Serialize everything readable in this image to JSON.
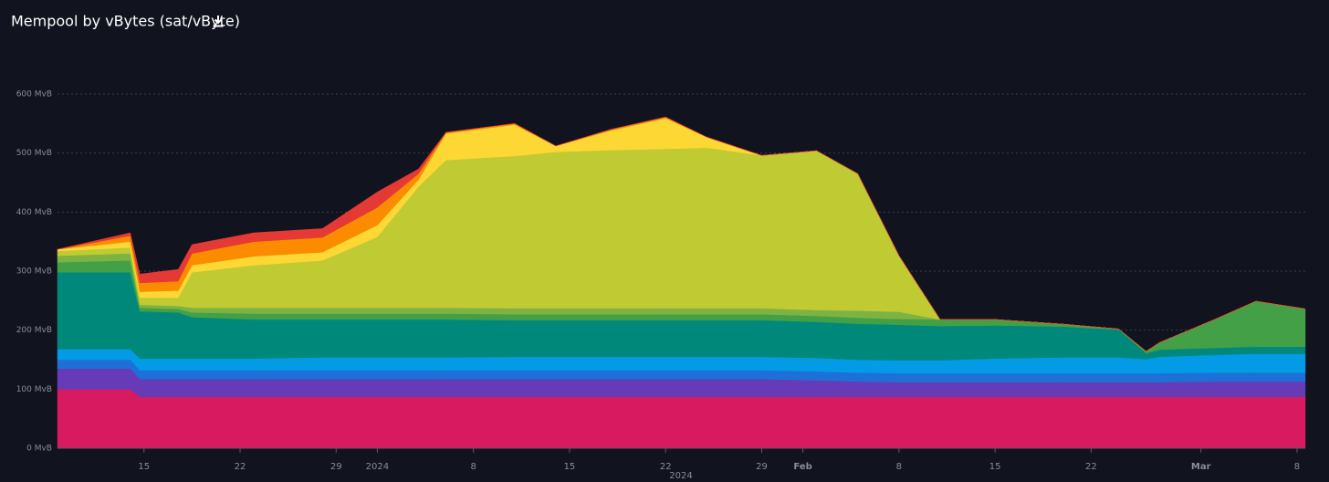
{
  "chart_data": {
    "type": "stacked-area",
    "title": "Mempool by vBytes (sat/vByte)",
    "x_label": "2024",
    "x": [
      -23.3,
      -18,
      -17.3,
      -14.5,
      -13.5,
      -9,
      -4,
      0,
      3,
      5,
      10,
      13,
      17,
      21,
      24,
      28,
      32,
      35,
      38,
      41,
      45,
      50,
      54,
      56,
      57,
      61,
      64,
      67.6
    ],
    "xlim": [
      -23.3,
      67.6
    ],
    "xticks": [
      {
        "value": -17,
        "label": "15"
      },
      {
        "value": -10,
        "label": "22"
      },
      {
        "value": -3,
        "label": "29"
      },
      {
        "value": 0,
        "label": "2024"
      },
      {
        "value": 7,
        "label": "8"
      },
      {
        "value": 14,
        "label": "15"
      },
      {
        "value": 21,
        "label": "22"
      },
      {
        "value": 28,
        "label": "29"
      },
      {
        "value": 31,
        "label": "Feb"
      },
      {
        "value": 38,
        "label": "8"
      },
      {
        "value": 45,
        "label": "15"
      },
      {
        "value": 52,
        "label": "22"
      },
      {
        "value": 60,
        "label": "Mar"
      },
      {
        "value": 67,
        "label": "8"
      }
    ],
    "ylim": [
      0,
      600
    ],
    "yticks": [
      {
        "value": 0,
        "label": "0 MvB"
      },
      {
        "value": 100,
        "label": "100 MvB"
      },
      {
        "value": 200,
        "label": "200 MvB"
      },
      {
        "value": 300,
        "label": "300 MvB"
      },
      {
        "value": 400,
        "label": "400 MvB"
      },
      {
        "value": 500,
        "label": "500 MvB"
      },
      {
        "value": 600,
        "label": "600 MvB"
      }
    ],
    "grid": true,
    "series": [
      {
        "color": "#d81b60",
        "values": [
          100,
          100,
          87,
          87,
          87,
          87,
          87,
          87,
          87,
          87,
          87,
          87,
          87,
          87,
          87,
          87,
          87,
          87,
          87,
          87,
          87,
          87,
          87,
          87,
          87,
          87,
          87,
          87
        ]
      },
      {
        "color": "#673ab7",
        "values": [
          35,
          35,
          30,
          30,
          30,
          30,
          30,
          30,
          30,
          30,
          30,
          30,
          30,
          30,
          30,
          30,
          28,
          26,
          25,
          25,
          25,
          25,
          25,
          25,
          25,
          26,
          26,
          26
        ]
      },
      {
        "color": "#1e70d6",
        "values": [
          15,
          15,
          15,
          15,
          15,
          15,
          15,
          15,
          15,
          15,
          15,
          15,
          15,
          15,
          15,
          15,
          15,
          15,
          15,
          15,
          15,
          15,
          15,
          15,
          15,
          15,
          15,
          15
        ]
      },
      {
        "color": "#039be5",
        "values": [
          18,
          18,
          20,
          20,
          20,
          20,
          22,
          22,
          22,
          22,
          23,
          23,
          23,
          23,
          23,
          23,
          23,
          22,
          22,
          22,
          25,
          27,
          27,
          24,
          28,
          30,
          32,
          32
        ]
      },
      {
        "color": "#00897b",
        "values": [
          130,
          130,
          80,
          78,
          70,
          66,
          64,
          64,
          64,
          64,
          62,
          62,
          62,
          62,
          62,
          62,
          61,
          61,
          60,
          58,
          56,
          52,
          47,
          10,
          12,
          12,
          12,
          12
        ]
      },
      {
        "color": "#43a047",
        "values": [
          17,
          20,
          6,
          6,
          8,
          10,
          10,
          10,
          10,
          10,
          10,
          10,
          10,
          10,
          10,
          10,
          10,
          10,
          10,
          11,
          10,
          4,
          1,
          3,
          12,
          48,
          77,
          64
        ]
      },
      {
        "color": "#7cb342",
        "values": [
          11,
          12,
          5,
          5,
          8,
          10,
          10,
          10,
          10,
          10,
          10,
          10,
          10,
          10,
          10,
          10,
          10,
          12,
          12,
          0,
          0,
          0,
          0,
          0,
          0,
          0,
          0,
          0
        ]
      },
      {
        "color": "#c0ca33",
        "values": [
          8,
          10,
          12,
          14,
          60,
          72,
          80,
          120,
          205,
          250,
          258,
          265,
          268,
          270,
          272,
          259,
          270,
          232,
          95,
          0,
          0,
          0,
          0,
          0,
          0,
          0,
          0,
          0
        ]
      },
      {
        "color": "#fdd835",
        "values": [
          3,
          10,
          10,
          12,
          12,
          15,
          14,
          20,
          12,
          45,
          53,
          10,
          33,
          52,
          18,
          0,
          0,
          0,
          0,
          0,
          0,
          0,
          0,
          0,
          0,
          0,
          0,
          0
        ]
      },
      {
        "color": "#fb8c00",
        "values": [
          0,
          10,
          15,
          16,
          20,
          25,
          25,
          30,
          10,
          2,
          2,
          0,
          2,
          2,
          0,
          0,
          0,
          0,
          0,
          0,
          0,
          0,
          0,
          0,
          0,
          0,
          0,
          0
        ]
      },
      {
        "color": "#e53935",
        "values": [
          0,
          5,
          15,
          20,
          15,
          15,
          15,
          26,
          8,
          0,
          0,
          0,
          0,
          0,
          0,
          0,
          0,
          0,
          0,
          0,
          0,
          0,
          0,
          0,
          0,
          0,
          0,
          0
        ]
      }
    ]
  }
}
